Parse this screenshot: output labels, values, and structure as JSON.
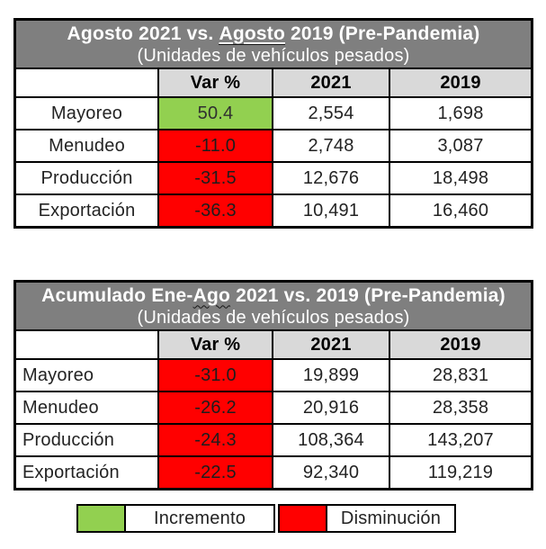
{
  "colors": {
    "header_bg": "#7F7F7F",
    "header_text": "#FFFFFF",
    "subheader_bg": "#D9D9D9",
    "increment_color": "#92D050",
    "decrement_color": "#FF0000",
    "border_color": "#000000"
  },
  "chart_data": [
    {
      "type": "table",
      "title": "Agosto 2021 vs. Agosto 2019 (Pre-Pandemia)",
      "subtitle": "(Unidades de vehículos pesados)",
      "title_segments": [
        {
          "text": "Agosto 2021 vs. ",
          "underline": "none"
        },
        {
          "text": "Agosto",
          "underline": "double"
        },
        {
          "text": " 2019 (Pre-Pandemia)",
          "underline": "none"
        }
      ],
      "columns": [
        "",
        "Var %",
        "2021",
        "2019"
      ],
      "label_align": "center",
      "rows": [
        {
          "label": "Mayoreo",
          "var_pct": "50.4",
          "trend": "increment",
          "y2021": "2,554",
          "y2019": "1,698"
        },
        {
          "label": "Menudeo",
          "var_pct": "-11.0",
          "trend": "decrement",
          "y2021": "2,748",
          "y2019": "3,087"
        },
        {
          "label": "Producción",
          "var_pct": "-31.5",
          "trend": "decrement",
          "y2021": "12,676",
          "y2019": "18,498"
        },
        {
          "label": "Exportación",
          "var_pct": "-36.3",
          "trend": "decrement",
          "y2021": "10,491",
          "y2019": "16,460"
        }
      ]
    },
    {
      "type": "table",
      "title": "Acumulado Ene-Ago 2021 vs. 2019 (Pre-Pandemia)",
      "subtitle": "(Unidades de vehículos pesados)",
      "title_segments": [
        {
          "text": "Acumulado Ene-",
          "underline": "none"
        },
        {
          "text": "Ago",
          "underline": "wavy"
        },
        {
          "text": " 2021 vs. 2019 (Pre-Pandemia)",
          "underline": "none"
        }
      ],
      "columns": [
        "",
        "Var %",
        "2021",
        "2019"
      ],
      "label_align": "left",
      "rows": [
        {
          "label": "Mayoreo",
          "var_pct": "-31.0",
          "trend": "decrement",
          "y2021": "19,899",
          "y2019": "28,831"
        },
        {
          "label": "Menudeo",
          "var_pct": "-26.2",
          "trend": "decrement",
          "y2021": "20,916",
          "y2019": "28,358"
        },
        {
          "label": "Producción",
          "var_pct": "-24.3",
          "trend": "decrement",
          "y2021": "108,364",
          "y2019": "143,207"
        },
        {
          "label": "Exportación",
          "var_pct": "-22.5",
          "trend": "decrement",
          "y2021": "92,340",
          "y2019": "119,219"
        }
      ]
    }
  ],
  "legend": {
    "increment_label": "Incremento",
    "decrement_label": "Disminución"
  }
}
